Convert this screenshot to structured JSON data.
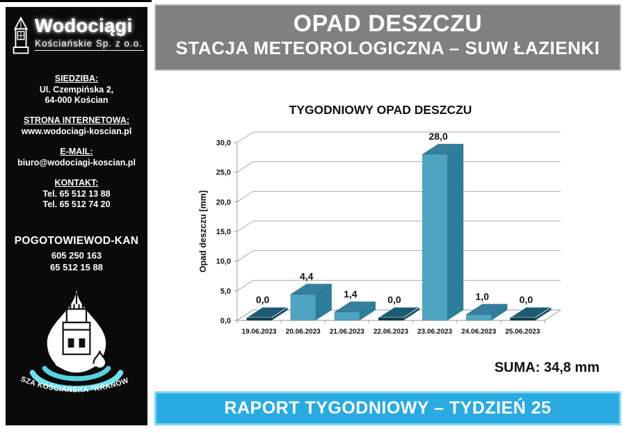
{
  "sidebar": {
    "logo": {
      "name": "Wodociągi",
      "subtitle": "Kościańskie Sp. z o.o."
    },
    "sections": [
      {
        "title": "SIEDZIBA:",
        "lines": [
          "Ul. Czempińska 2,",
          "64-000 Kościan"
        ]
      },
      {
        "title": "STRONA INTERNETOWA:",
        "lines": [
          "www.wodociagi-koscian.pl"
        ]
      },
      {
        "title": "E-MAIL:",
        "lines": [
          "biuro@wodociagi-koscian.pl"
        ]
      },
      {
        "title": "KONTAKT:",
        "lines": [
          "Tel. 65 512 13 88",
          "Tel. 65 512 74 20"
        ]
      }
    ],
    "emergency": {
      "title": "POGOTOWIEWOD-KAN",
      "lines": [
        "605 250 163",
        "65 512 15 88"
      ]
    },
    "emblem_caption": "NASZA KOŚCIAŃSKA \"KRANÓWKA\""
  },
  "header": {
    "title": "OPAD DESZCZU",
    "subtitle": "STACJA METEOROLOGICZNA – SUW ŁAZIENKI"
  },
  "chart_data": {
    "type": "bar",
    "style": "3d-column",
    "title": "TYGODNIOWY OPAD DESZCZU",
    "categories": [
      "19.06.2023",
      "20.06.2023",
      "21.06.2023",
      "22.06.2023",
      "23.06.2023",
      "24.06.2023",
      "25.06.2023"
    ],
    "values": [
      0.0,
      4.4,
      1.4,
      0.0,
      28.0,
      1.0,
      0.0
    ],
    "xlabel": "",
    "ylabel": "Opad deszczu [mm]",
    "ylim": [
      0,
      30
    ],
    "ytick_step": 5,
    "grid": true,
    "legend": false,
    "decimal_separator": ",",
    "colors": {
      "bar_front": "#4FA5C0",
      "bar_side": "#2C7E9B",
      "bar_top": "#34809E",
      "zero_top": "#1D5971",
      "zero_front": "#123D4E",
      "zero_side": "#16485C",
      "gridline": "#a9a9a9",
      "axis": "#9a9a9a"
    }
  },
  "summary": {
    "text": "SUMA: 34,8 mm"
  },
  "footer": {
    "text": "RAPORT TYGODNIOWY – TYDZIEŃ 25"
  },
  "colors": {
    "header_bg": "#808080",
    "footer_bg": "#29abe2",
    "sidebar_bg": "#0a0a0a",
    "ripple_cyan": "#6fe0ea"
  }
}
